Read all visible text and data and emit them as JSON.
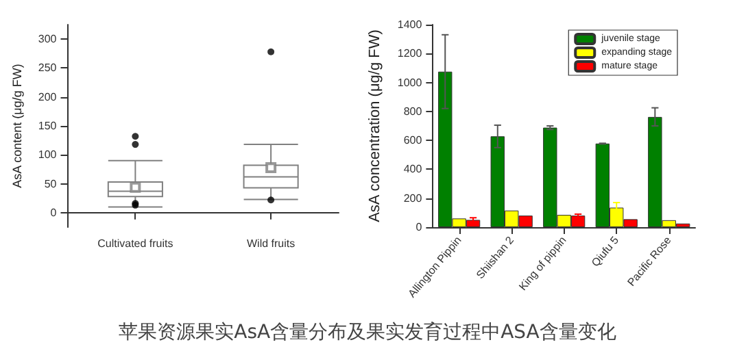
{
  "chart_data": [
    {
      "type": "box",
      "ylabel": "AsA content (μg/g FW)",
      "categories": [
        "Cultivated fruits",
        "Wild fruits"
      ],
      "ylim": [
        -25,
        325
      ],
      "yticks": [
        0,
        50,
        100,
        150,
        200,
        250,
        300
      ],
      "color": "#808080",
      "boxes": [
        {
          "low": 10,
          "q1": 28,
          "median": 37,
          "q3": 53,
          "high": 90,
          "mean": 44,
          "outliers": [
            13,
            16,
            118,
            132
          ]
        },
        {
          "low": 23,
          "q1": 43,
          "median": 62,
          "q3": 82,
          "high": 118,
          "mean": 78,
          "outliers": [
            22,
            278
          ]
        }
      ],
      "annotations": [
        "苹果资源果实AsA含量分布及果实发育过程中ASA含量变化"
      ]
    },
    {
      "type": "bar",
      "ylabel": "AsA concentration (μg/g FW)",
      "categories": [
        "Allington Pippin",
        "Shiishan 2",
        "King of pippin",
        "Qiufu 5",
        "Pacific Rose"
      ],
      "ylim": [
        0,
        1400
      ],
      "yticks": [
        0,
        200,
        400,
        600,
        800,
        1000,
        1200,
        1400
      ],
      "legend": "top right",
      "series": [
        {
          "name": "juvenile stage",
          "color": "#008000",
          "values": [
            1075,
            628,
            688,
            578,
            762
          ],
          "errors": [
            [
              820,
              1330
            ],
            [
              550,
              705
            ],
            [
              675,
              700
            ],
            [
              575,
              580
            ],
            [
              700,
              825
            ]
          ]
        },
        {
          "name": "expanding stage",
          "color": "#ffff00",
          "values": [
            60,
            115,
            85,
            135,
            48
          ],
          "errors": [
            null,
            null,
            null,
            [
              100,
              170
            ],
            null
          ]
        },
        {
          "name": "mature stage",
          "color": "#ff0000",
          "values": [
            50,
            80,
            80,
            55,
            25
          ],
          "errors": [
            [
              38,
              65
            ],
            null,
            [
              72,
              90
            ],
            null,
            null
          ]
        }
      ]
    }
  ]
}
